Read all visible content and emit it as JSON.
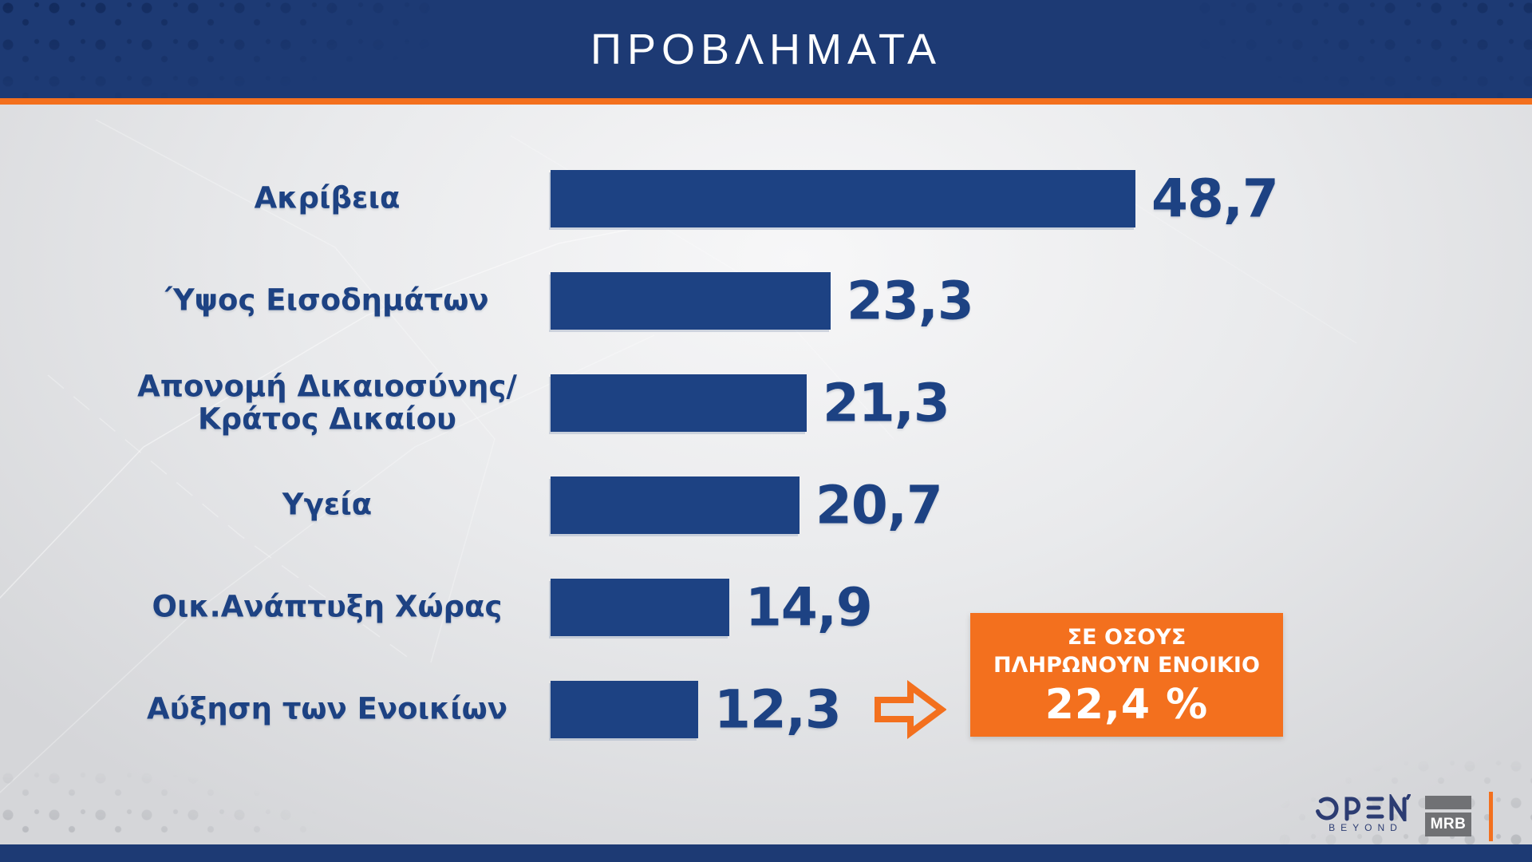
{
  "header": {
    "title": "ΠΡΟΒΛΗΜΑΤΑ"
  },
  "chart_data": {
    "type": "bar",
    "orientation": "horizontal",
    "title": "ΠΡΟΒΛΗΜΑΤΑ",
    "categories": [
      "Ακρίβεια",
      "Ύψος Εισοδημάτων",
      "Απονομή Δικαιοσύνης/ Κράτος Δικαίου",
      "Υγεία",
      "Οικ.Ανάπτυξη Χώρας",
      "Αύξηση των Ενοικίων"
    ],
    "label_lines": [
      [
        "Ακρίβεια"
      ],
      [
        "Ύψος Εισοδημάτων"
      ],
      [
        "Απονομή Δικαιοσύνης/",
        "Κράτος Δικαίου"
      ],
      [
        "Υγεία"
      ],
      [
        "Οικ.Ανάπτυξη Χώρας"
      ],
      [
        "Αύξηση των Ενοικίων"
      ]
    ],
    "values": [
      48.7,
      23.3,
      21.3,
      20.7,
      14.9,
      12.3
    ],
    "value_labels": [
      "48,7",
      "23,3",
      "21,3",
      "20,7",
      "14,9",
      "12,3"
    ],
    "xlim": [
      0,
      50
    ],
    "grid": false,
    "legend": false,
    "bar_color": "#1d4283",
    "annotation": {
      "applies_to": "Αύξηση των Ενοικίων",
      "lines": [
        "ΣΕ ΟΣΟΥΣ",
        "ΠΛΗΡΩΝΟΥΝ ΕΝΟΙΚΙΟ"
      ],
      "value_label": "22,4 %",
      "box_color": "#f3701e"
    }
  },
  "footer": {
    "open": {
      "name": "OPEN",
      "tagline": "BEYOND"
    },
    "mrb": {
      "name": "MRB"
    }
  },
  "colors": {
    "navy_band": "#1d3a74",
    "bar_navy": "#1d4283",
    "orange": "#f3701e",
    "background_light": "#f7f7f8",
    "background_dark": "#d5d6d9"
  }
}
